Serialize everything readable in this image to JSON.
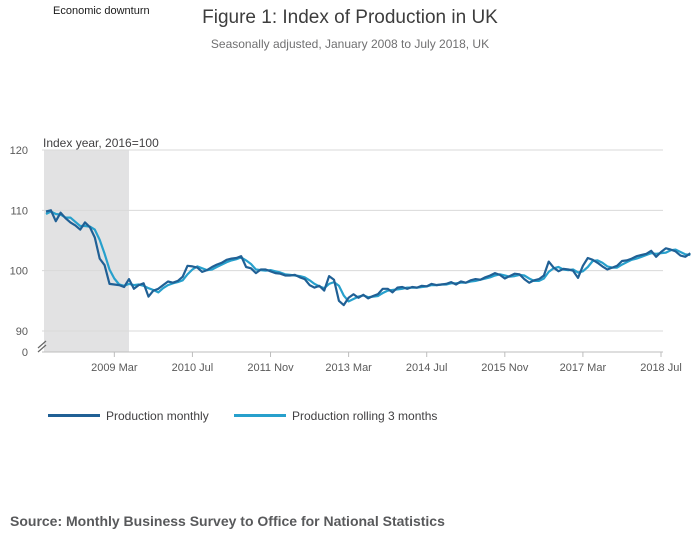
{
  "annotation": "Economic downturn",
  "colors": {
    "monthly": "#206095",
    "rolling": "#27a0cc",
    "shade": "#e2e2e3",
    "grid": "#d9d9d9"
  },
  "chart_data": {
    "type": "line",
    "title": "Figure 1: Index of Production in UK",
    "subtitle": "Seasonally adjusted, January 2008 to July 2018, UK",
    "ylabel": "Index year, 2016=100",
    "xlabel": "",
    "ylim": [
      90,
      120
    ],
    "yticks": [
      0,
      90,
      100,
      110,
      120
    ],
    "axis_break": true,
    "grid": true,
    "legend_position": "bottom",
    "shaded_period": {
      "label": "Economic downturn",
      "start": "2008-01",
      "end": "2009-06"
    },
    "x_tick_labels": [
      {
        "date": "2009-03",
        "label": "2009 Mar"
      },
      {
        "date": "2010-07",
        "label": "2010 Jul"
      },
      {
        "date": "2011-11",
        "label": "2011 Nov"
      },
      {
        "date": "2013-03",
        "label": "2013 Mar"
      },
      {
        "date": "2014-07",
        "label": "2014 Jul"
      },
      {
        "date": "2015-11",
        "label": "2015 Nov"
      },
      {
        "date": "2017-03",
        "label": "2017 Mar"
      },
      {
        "date": "2018-07",
        "label": "2018 Jul"
      }
    ],
    "x_start": "2008-01",
    "x_end": "2018-07",
    "series": [
      {
        "name": "Production monthly",
        "values": [
          109.8,
          110.0,
          108.2,
          109.6,
          108.7,
          108.0,
          107.5,
          106.8,
          108.0,
          107.2,
          105.5,
          102.0,
          100.9,
          97.8,
          97.7,
          97.6,
          97.3,
          98.6,
          97.0,
          97.6,
          97.9,
          95.7,
          96.7,
          97.0,
          97.6,
          98.2,
          98.0,
          98.3,
          99.0,
          100.8,
          100.7,
          100.5,
          99.8,
          100.1,
          100.6,
          101.0,
          101.3,
          101.8,
          102.0,
          102.1,
          102.4,
          100.6,
          100.4,
          99.6,
          100.2,
          100.2,
          99.9,
          99.6,
          99.5,
          99.2,
          99.2,
          99.3,
          98.9,
          98.6,
          97.6,
          97.2,
          97.5,
          96.7,
          99.1,
          98.5,
          95.0,
          94.3,
          95.5,
          96.1,
          95.5,
          96.0,
          95.4,
          95.8,
          96.1,
          97.0,
          97.0,
          96.4,
          97.2,
          97.3,
          97.0,
          97.3,
          97.2,
          97.5,
          97.4,
          97.8,
          97.6,
          97.7,
          97.8,
          98.1,
          97.7,
          98.2,
          98.0,
          98.4,
          98.6,
          98.5,
          98.9,
          99.2,
          99.6,
          99.3,
          98.7,
          99.1,
          99.5,
          99.4,
          98.6,
          98.0,
          98.4,
          98.6,
          99.2,
          101.5,
          100.5,
          99.9,
          100.3,
          100.2,
          100.0,
          98.8,
          100.8,
          102.1,
          101.8,
          101.3,
          100.7,
          100.2,
          100.5,
          100.8,
          101.6,
          101.7,
          102.0,
          102.4,
          102.6,
          102.8,
          103.3,
          102.3,
          103.1,
          103.7,
          103.5,
          103.2,
          102.5,
          102.3,
          102.9
        ]
      },
      {
        "name": "Production rolling 3 months",
        "values": [
          109.4,
          109.8,
          109.4,
          109.3,
          108.8,
          108.8,
          108.1,
          107.4,
          107.4,
          107.3,
          106.8,
          105.1,
          102.8,
          100.2,
          98.7,
          97.7,
          97.5,
          97.8,
          97.6,
          97.7,
          97.5,
          97.1,
          96.8,
          96.4,
          97.1,
          97.6,
          97.9,
          98.1,
          98.4,
          99.4,
          100.2,
          100.7,
          100.4,
          100.1,
          100.2,
          100.6,
          101.0,
          101.4,
          101.7,
          101.9,
          102.2,
          101.7,
          101.1,
          100.2,
          100.1,
          100.0,
          100.1,
          99.9,
          99.7,
          99.4,
          99.3,
          99.2,
          99.1,
          98.9,
          98.4,
          97.8,
          97.4,
          97.1,
          97.8,
          98.1,
          97.5,
          95.9,
          94.9,
          95.3,
          95.7,
          95.9,
          95.6,
          95.7,
          95.8,
          96.3,
          96.7,
          96.8,
          96.9,
          97.0,
          97.2,
          97.2,
          97.2,
          97.3,
          97.4,
          97.6,
          97.6,
          97.7,
          97.7,
          97.9,
          97.9,
          98.0,
          98.0,
          98.2,
          98.3,
          98.5,
          98.7,
          98.9,
          99.2,
          99.4,
          99.2,
          99.0,
          99.1,
          99.3,
          99.2,
          98.7,
          98.3,
          98.3,
          98.7,
          99.8,
          100.4,
          100.6,
          100.2,
          100.1,
          100.2,
          99.7,
          99.9,
          100.6,
          101.6,
          101.7,
          101.3,
          100.7,
          100.5,
          100.5,
          101.0,
          101.4,
          101.8,
          102.0,
          102.3,
          102.6,
          102.9,
          102.8,
          102.9,
          103.0,
          103.4,
          103.5,
          103.1,
          102.7,
          102.6
        ]
      }
    ]
  },
  "legend": [
    {
      "label": "Production monthly"
    },
    {
      "label": "Production rolling 3 months"
    }
  ],
  "source": "Source: Monthly Business Survey to Office for National Statistics"
}
